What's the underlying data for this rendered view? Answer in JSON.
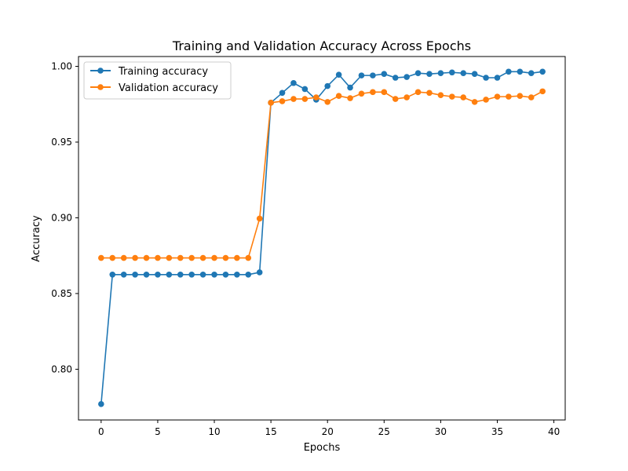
{
  "chart_data": {
    "type": "line",
    "title": "Training and Validation Accuracy Across Epochs",
    "xlabel": "Epochs",
    "ylabel": "Accuracy",
    "xlim": [
      -2,
      41
    ],
    "ylim": [
      0.7665,
      1.0065
    ],
    "grid": false,
    "legend_position": "top-left",
    "x_ticks": [
      0,
      5,
      10,
      15,
      20,
      25,
      30,
      35,
      40
    ],
    "x_tick_labels": [
      "0",
      "5",
      "10",
      "15",
      "20",
      "25",
      "30",
      "35",
      "40"
    ],
    "y_ticks": [
      0.8,
      0.85,
      0.9,
      0.95,
      1.0
    ],
    "y_tick_labels": [
      "0.80",
      "0.85",
      "0.90",
      "0.95",
      "1.00"
    ],
    "x": [
      0,
      1,
      2,
      3,
      4,
      5,
      6,
      7,
      8,
      9,
      10,
      11,
      12,
      13,
      14,
      15,
      16,
      17,
      18,
      19,
      20,
      21,
      22,
      23,
      24,
      25,
      26,
      27,
      28,
      29,
      30,
      31,
      32,
      33,
      34,
      35,
      36,
      37,
      38,
      39
    ],
    "series": [
      {
        "name": "Training accuracy",
        "color": "#1f77b4",
        "values": [
          0.777,
          0.8625,
          0.8625,
          0.8625,
          0.8625,
          0.8625,
          0.8625,
          0.8625,
          0.8625,
          0.8625,
          0.8625,
          0.8625,
          0.8625,
          0.8625,
          0.864,
          0.976,
          0.9825,
          0.989,
          0.985,
          0.978,
          0.987,
          0.9945,
          0.986,
          0.994,
          0.994,
          0.995,
          0.9925,
          0.993,
          0.9955,
          0.995,
          0.9955,
          0.996,
          0.9955,
          0.995,
          0.9925,
          0.9925,
          0.9965,
          0.9965,
          0.9955,
          0.9965
        ]
      },
      {
        "name": "Validation accuracy",
        "color": "#ff7f0e",
        "values": [
          0.8735,
          0.8735,
          0.8735,
          0.8735,
          0.8735,
          0.8735,
          0.8735,
          0.8735,
          0.8735,
          0.8735,
          0.8735,
          0.8735,
          0.8735,
          0.8735,
          0.8995,
          0.976,
          0.977,
          0.9785,
          0.9785,
          0.9795,
          0.9765,
          0.9805,
          0.979,
          0.982,
          0.983,
          0.983,
          0.9785,
          0.9795,
          0.983,
          0.9825,
          0.981,
          0.98,
          0.9795,
          0.9765,
          0.978,
          0.98,
          0.98,
          0.9805,
          0.9795,
          0.9835
        ]
      }
    ]
  }
}
